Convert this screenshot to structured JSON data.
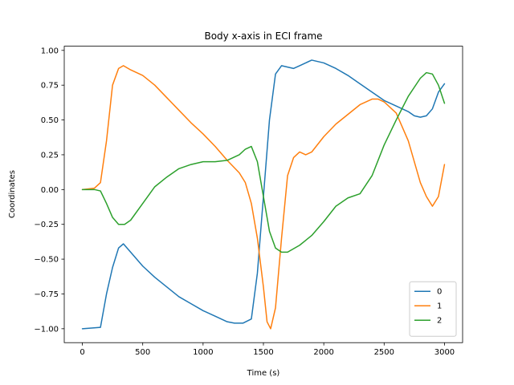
{
  "chart_data": {
    "type": "line",
    "title": "Body x-axis in ECI frame",
    "xlabel": "Time (s)",
    "ylabel": "Coordinates",
    "xlim": [
      -150,
      3150
    ],
    "ylim": [
      -1.1,
      1.03
    ],
    "xticks": [
      0,
      500,
      1000,
      1500,
      2000,
      2500,
      3000
    ],
    "xtick_labels": [
      "0",
      "500",
      "1000",
      "1500",
      "2000",
      "2500",
      "3000"
    ],
    "yticks": [
      -1.0,
      -0.75,
      -0.5,
      -0.25,
      0.0,
      0.25,
      0.5,
      0.75,
      1.0
    ],
    "ytick_labels": [
      "−1.00",
      "−0.75",
      "−0.50",
      "−0.25",
      "0.00",
      "0.25",
      "0.50",
      "0.75",
      "1.00"
    ],
    "grid": false,
    "legend_position": "lower-right",
    "series": [
      {
        "name": "0",
        "color": "#1f77b4",
        "points": [
          [
            0,
            -1.0
          ],
          [
            150,
            -0.99
          ],
          [
            200,
            -0.75
          ],
          [
            250,
            -0.56
          ],
          [
            300,
            -0.42
          ],
          [
            340,
            -0.39
          ],
          [
            400,
            -0.45
          ],
          [
            500,
            -0.55
          ],
          [
            600,
            -0.63
          ],
          [
            700,
            -0.7
          ],
          [
            800,
            -0.77
          ],
          [
            900,
            -0.82
          ],
          [
            1000,
            -0.87
          ],
          [
            1100,
            -0.91
          ],
          [
            1200,
            -0.95
          ],
          [
            1260,
            -0.96
          ],
          [
            1330,
            -0.96
          ],
          [
            1400,
            -0.93
          ],
          [
            1450,
            -0.6
          ],
          [
            1500,
            -0.05
          ],
          [
            1550,
            0.5
          ],
          [
            1600,
            0.83
          ],
          [
            1650,
            0.89
          ],
          [
            1700,
            0.88
          ],
          [
            1750,
            0.87
          ],
          [
            1800,
            0.89
          ],
          [
            1850,
            0.91
          ],
          [
            1900,
            0.93
          ],
          [
            1950,
            0.92
          ],
          [
            2000,
            0.91
          ],
          [
            2100,
            0.87
          ],
          [
            2200,
            0.82
          ],
          [
            2300,
            0.76
          ],
          [
            2400,
            0.7
          ],
          [
            2500,
            0.64
          ],
          [
            2600,
            0.6
          ],
          [
            2700,
            0.56
          ],
          [
            2750,
            0.53
          ],
          [
            2800,
            0.52
          ],
          [
            2850,
            0.53
          ],
          [
            2900,
            0.58
          ],
          [
            2950,
            0.7
          ],
          [
            3000,
            0.76
          ]
        ]
      },
      {
        "name": "1",
        "color": "#ff7f0e",
        "points": [
          [
            0,
            0.0
          ],
          [
            100,
            0.01
          ],
          [
            150,
            0.05
          ],
          [
            200,
            0.35
          ],
          [
            250,
            0.75
          ],
          [
            300,
            0.87
          ],
          [
            340,
            0.89
          ],
          [
            400,
            0.86
          ],
          [
            500,
            0.82
          ],
          [
            600,
            0.75
          ],
          [
            700,
            0.66
          ],
          [
            800,
            0.57
          ],
          [
            900,
            0.48
          ],
          [
            1000,
            0.4
          ],
          [
            1100,
            0.31
          ],
          [
            1200,
            0.21
          ],
          [
            1300,
            0.12
          ],
          [
            1350,
            0.05
          ],
          [
            1400,
            -0.1
          ],
          [
            1450,
            -0.35
          ],
          [
            1500,
            -0.7
          ],
          [
            1530,
            -0.95
          ],
          [
            1560,
            -1.0
          ],
          [
            1600,
            -0.85
          ],
          [
            1650,
            -0.35
          ],
          [
            1700,
            0.1
          ],
          [
            1750,
            0.23
          ],
          [
            1800,
            0.27
          ],
          [
            1850,
            0.25
          ],
          [
            1900,
            0.27
          ],
          [
            2000,
            0.38
          ],
          [
            2100,
            0.47
          ],
          [
            2200,
            0.54
          ],
          [
            2300,
            0.61
          ],
          [
            2400,
            0.65
          ],
          [
            2450,
            0.65
          ],
          [
            2500,
            0.63
          ],
          [
            2600,
            0.55
          ],
          [
            2700,
            0.35
          ],
          [
            2800,
            0.05
          ],
          [
            2850,
            -0.05
          ],
          [
            2900,
            -0.12
          ],
          [
            2950,
            -0.05
          ],
          [
            3000,
            0.18
          ]
        ]
      },
      {
        "name": "2",
        "color": "#2ca02c",
        "points": [
          [
            0,
            0.0
          ],
          [
            100,
            0.0
          ],
          [
            150,
            -0.01
          ],
          [
            200,
            -0.1
          ],
          [
            250,
            -0.2
          ],
          [
            300,
            -0.25
          ],
          [
            350,
            -0.25
          ],
          [
            400,
            -0.22
          ],
          [
            500,
            -0.1
          ],
          [
            600,
            0.02
          ],
          [
            700,
            0.09
          ],
          [
            800,
            0.15
          ],
          [
            900,
            0.18
          ],
          [
            1000,
            0.2
          ],
          [
            1100,
            0.2
          ],
          [
            1200,
            0.21
          ],
          [
            1300,
            0.25
          ],
          [
            1350,
            0.29
          ],
          [
            1400,
            0.31
          ],
          [
            1450,
            0.2
          ],
          [
            1500,
            -0.05
          ],
          [
            1550,
            -0.3
          ],
          [
            1600,
            -0.42
          ],
          [
            1650,
            -0.45
          ],
          [
            1700,
            -0.45
          ],
          [
            1800,
            -0.4
          ],
          [
            1900,
            -0.33
          ],
          [
            2000,
            -0.23
          ],
          [
            2100,
            -0.12
          ],
          [
            2200,
            -0.06
          ],
          [
            2300,
            -0.03
          ],
          [
            2400,
            0.1
          ],
          [
            2500,
            0.32
          ],
          [
            2600,
            0.5
          ],
          [
            2700,
            0.67
          ],
          [
            2800,
            0.8
          ],
          [
            2850,
            0.84
          ],
          [
            2900,
            0.83
          ],
          [
            2950,
            0.75
          ],
          [
            3000,
            0.62
          ]
        ]
      }
    ]
  }
}
